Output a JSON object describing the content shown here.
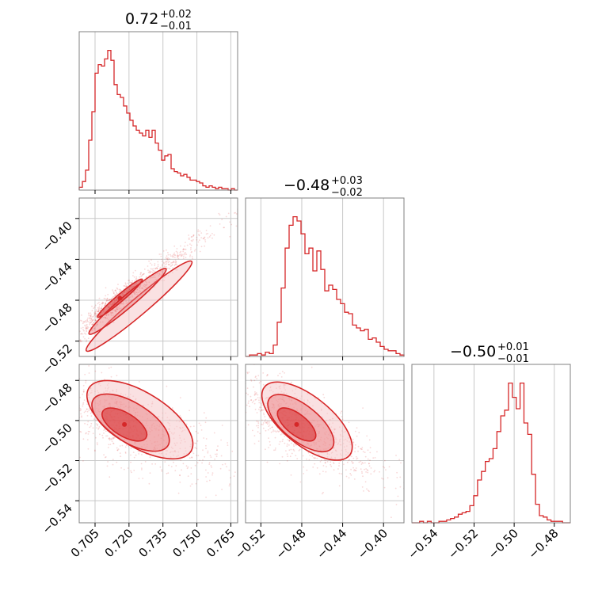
{
  "colors": {
    "accent": "#d62728",
    "fill_light": "#f6c9ca",
    "fill_dark": "#e8787a",
    "grid": "#c8c8c8",
    "frame": "#808080"
  },
  "chart_data": {
    "type": "corner",
    "params": [
      {
        "title_main": "0.72",
        "title_plus": "+0.02",
        "title_minus": "−0.01",
        "range": [
          0.698,
          0.768
        ],
        "ticks": [
          0.705,
          0.72,
          0.735,
          0.75,
          0.765
        ],
        "tick_labels": [
          "0.705",
          "0.720",
          "0.735",
          "0.750",
          "0.765"
        ]
      },
      {
        "title_main": "−0.48",
        "title_plus": "+0.03",
        "title_minus": "−0.02",
        "range": [
          -0.535,
          -0.38
        ],
        "ticks": [
          -0.52,
          -0.48,
          -0.44,
          -0.4
        ],
        "tick_labels": [
          "−0.52",
          "−0.48",
          "−0.44",
          "−0.40"
        ]
      },
      {
        "title_main": "−0.50",
        "title_plus": "+0.01",
        "title_minus": "−0.01",
        "range": [
          -0.551,
          -0.472
        ],
        "ticks": [
          -0.54,
          -0.52,
          -0.5,
          -0.48
        ],
        "tick_labels": [
          "−0.54",
          "−0.52",
          "−0.50",
          "−0.48"
        ]
      }
    ],
    "histograms": [
      {
        "param": 0,
        "ylim": [
          0,
          1.0
        ],
        "heights": [
          0.02,
          0.06,
          0.14,
          0.35,
          0.55,
          0.82,
          0.88,
          0.87,
          0.92,
          0.98,
          0.91,
          0.74,
          0.67,
          0.65,
          0.59,
          0.54,
          0.49,
          0.45,
          0.42,
          0.4,
          0.38,
          0.42,
          0.37,
          0.42,
          0.33,
          0.28,
          0.21,
          0.24,
          0.25,
          0.15,
          0.13,
          0.12,
          0.1,
          0.11,
          0.09,
          0.07,
          0.07,
          0.06,
          0.05,
          0.03,
          0.02,
          0.03,
          0.02,
          0.01,
          0.02,
          0.01,
          0.01,
          0.0,
          0.01,
          0.0
        ]
      },
      {
        "param": 1,
        "ylim": [
          0,
          1.0
        ],
        "heights": [
          0.0,
          0.01,
          0.01,
          0.02,
          0.01,
          0.03,
          0.02,
          0.08,
          0.24,
          0.48,
          0.76,
          0.92,
          0.98,
          0.95,
          0.86,
          0.72,
          0.76,
          0.6,
          0.74,
          0.61,
          0.46,
          0.5,
          0.47,
          0.4,
          0.37,
          0.31,
          0.3,
          0.22,
          0.2,
          0.18,
          0.19,
          0.12,
          0.13,
          0.1,
          0.07,
          0.05,
          0.04,
          0.04,
          0.02,
          0.01
        ]
      },
      {
        "param": 2,
        "ylim": [
          0,
          1.0
        ],
        "heights": [
          0.0,
          0.0,
          0.01,
          0.0,
          0.01,
          0.0,
          0.0,
          0.01,
          0.01,
          0.02,
          0.03,
          0.04,
          0.06,
          0.07,
          0.08,
          0.12,
          0.19,
          0.3,
          0.36,
          0.43,
          0.45,
          0.52,
          0.64,
          0.75,
          0.79,
          0.98,
          0.88,
          0.8,
          0.98,
          0.7,
          0.62,
          0.34,
          0.13,
          0.05,
          0.04,
          0.02,
          0.01,
          0.01,
          0.01,
          0.0,
          0.0
        ]
      }
    ],
    "joints": [
      {
        "x_param": 0,
        "y_param": 1,
        "center": [
          0.716,
          -0.478
        ],
        "std": [
          0.009,
          0.017
        ],
        "corr": 0.97,
        "skew_x": 0.022,
        "n_points": 900
      },
      {
        "x_param": 0,
        "y_param": 2,
        "center": [
          0.718,
          -0.502
        ],
        "std": [
          0.009,
          0.0075
        ],
        "corr": -0.62,
        "skew_x": 0.022,
        "n_points": 900
      },
      {
        "x_param": 1,
        "y_param": 2,
        "center": [
          -0.485,
          -0.502
        ],
        "std": [
          0.017,
          0.0075
        ],
        "corr": -0.66,
        "skew_x": 0.03,
        "n_points": 900
      }
    ],
    "grid": true,
    "legend": "none"
  }
}
